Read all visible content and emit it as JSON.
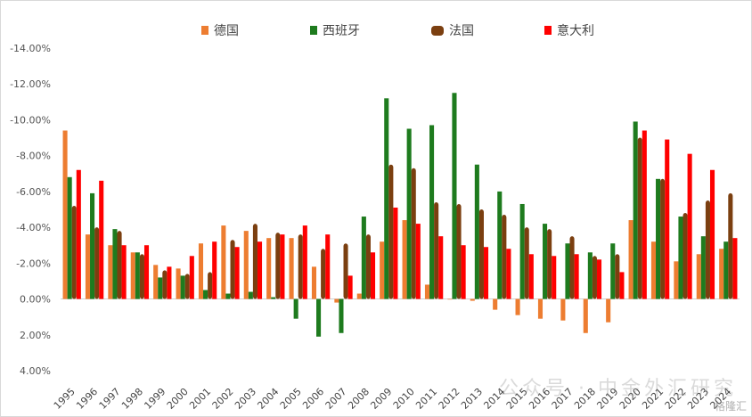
{
  "chart_data": {
    "type": "bar",
    "categories": [
      "1995",
      "1996",
      "1997",
      "1998",
      "1999",
      "2000",
      "2001",
      "2002",
      "2003",
      "2004",
      "2005",
      "2006",
      "2007",
      "2008",
      "2009",
      "2010",
      "2011",
      "2012",
      "2013",
      "2014",
      "2015",
      "2016",
      "2017",
      "2018",
      "2019",
      "2020",
      "2021",
      "2022",
      "2023",
      "2024"
    ],
    "y_axis": {
      "reversed": true,
      "min": -14,
      "max": 4,
      "step": 2,
      "tick_labels": [
        "-14.00%",
        "-12.00%",
        "-10.00%",
        "-8.00%",
        "-6.00%",
        "-4.00%",
        "-2.00%",
        "0.00%",
        "2.00%",
        "4.00%"
      ]
    },
    "x_tick_labels": [
      "1995",
      "1996",
      "1997",
      "1998",
      "1999",
      "2000",
      "2001",
      "2002",
      "2003",
      "2004",
      "2005",
      "2006",
      "2007",
      "2008",
      "2009",
      "2010",
      "2011",
      "2012",
      "2013",
      "2014",
      "2015",
      "2016",
      "2017",
      "2018",
      "2019",
      "2020",
      "2021",
      "2022",
      "2023",
      "2024"
    ],
    "series": [
      {
        "name": "德国",
        "color": "#ED7D31",
        "values": [
          -9.4,
          -3.6,
          -3.0,
          -2.6,
          -1.9,
          -1.7,
          -3.1,
          -4.1,
          -3.8,
          -3.4,
          -3.4,
          -1.8,
          0.2,
          -0.3,
          -3.2,
          -4.4,
          -0.8,
          0.0,
          0.1,
          0.6,
          0.9,
          1.1,
          1.2,
          1.9,
          1.3,
          -4.4,
          -3.2,
          -2.1,
          -2.5,
          -2.8
        ]
      },
      {
        "name": "西班牙",
        "color": "#1E7B1E",
        "values": [
          -6.8,
          -5.9,
          -3.9,
          -2.6,
          -1.2,
          -1.3,
          -0.5,
          -0.3,
          -0.4,
          -0.1,
          1.1,
          2.1,
          1.9,
          -4.6,
          -11.2,
          -9.5,
          -9.7,
          -11.5,
          -7.5,
          -6.0,
          -5.3,
          -4.2,
          -3.1,
          -2.6,
          -3.1,
          -9.9,
          -6.7,
          -4.6,
          -3.5,
          -3.2
        ]
      },
      {
        "name": "法国",
        "color": "#7B3F10",
        "values": [
          -5.2,
          -4.0,
          -3.8,
          -2.5,
          -1.6,
          -1.4,
          -1.5,
          -3.3,
          -4.2,
          -3.7,
          -3.6,
          -2.8,
          -3.1,
          -3.6,
          -7.5,
          -7.3,
          -5.4,
          -5.3,
          -5.0,
          -4.7,
          -4.0,
          -3.9,
          -3.5,
          -2.4,
          -2.5,
          -9.0,
          -6.7,
          -4.8,
          -5.5,
          -5.9
        ]
      },
      {
        "name": "意大利",
        "color": "#FF0000",
        "values": [
          -7.2,
          -6.6,
          -3.0,
          -3.0,
          -1.8,
          -2.4,
          -3.2,
          -2.9,
          -3.2,
          -3.6,
          -4.1,
          -3.6,
          -1.3,
          -2.6,
          -5.1,
          -4.2,
          -3.5,
          -3.0,
          -2.9,
          -2.8,
          -2.5,
          -2.4,
          -2.5,
          -2.2,
          -1.5,
          -9.4,
          -8.9,
          -8.1,
          -7.2,
          -3.4
        ]
      }
    ]
  },
  "watermark": "公众号 · 中金外汇研究",
  "corner_mark": "格隆汇"
}
